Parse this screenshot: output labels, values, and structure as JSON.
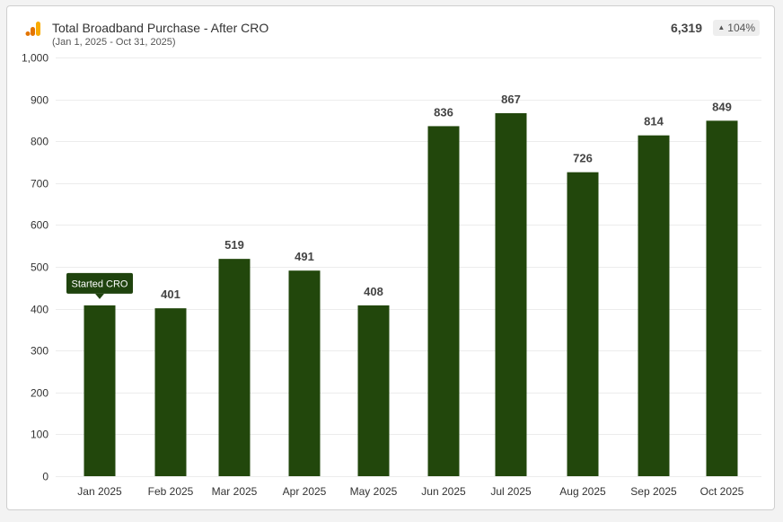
{
  "header": {
    "title": "Total Broadband Purchase - After CRO",
    "date_range": "(Jan 1, 2025 - Oct 31, 2025)",
    "total": "6,319",
    "change": "104%",
    "change_icon": "triangle-up-icon"
  },
  "colors": {
    "bar": "#22470c",
    "annotation": "#1f430e",
    "logo_orange": "#f9ab00",
    "logo_dark": "#e37400"
  },
  "chart_data": {
    "type": "bar",
    "categories": [
      "Jan 2025",
      "Feb 2025",
      "Mar 2025",
      "Apr 2025",
      "May 2025",
      "Jun 2025",
      "Jul 2025",
      "Aug 2025",
      "Sep 2025",
      "Oct 2025"
    ],
    "values": [
      408,
      401,
      519,
      491,
      408,
      836,
      867,
      726,
      814,
      849
    ],
    "value_labels": [
      "",
      "401",
      "519",
      "491",
      "408",
      "836",
      "867",
      "726",
      "814",
      "849"
    ],
    "title": "Total Broadband Purchase - After CRO",
    "xlabel": "",
    "ylabel": "",
    "ylim": [
      0,
      1000
    ],
    "yticks": [
      0,
      100,
      200,
      300,
      400,
      500,
      600,
      700,
      800,
      900,
      1000
    ],
    "ytick_labels": [
      "0",
      "100",
      "200",
      "300",
      "400",
      "500",
      "600",
      "700",
      "800",
      "900",
      "1,000"
    ],
    "grid": true,
    "legend": "none",
    "annotations": [
      {
        "category_index": 0,
        "text": "Started CRO"
      }
    ]
  }
}
